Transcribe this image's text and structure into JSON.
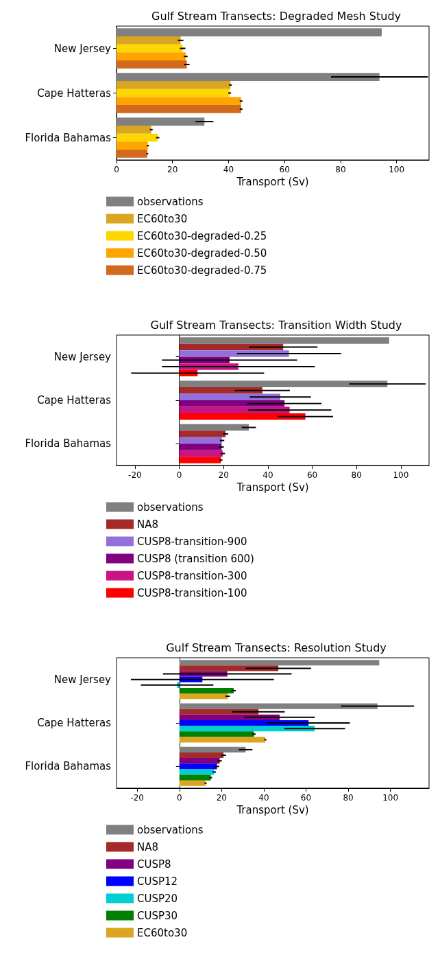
{
  "chart_data": [
    {
      "type": "bar",
      "orientation": "horizontal",
      "title": "Gulf Stream Transects: Degraded Mesh Study",
      "xlabel": "Transport (Sv)",
      "categories": [
        "New Jersey",
        "Cape Hatteras",
        "Florida Bahamas"
      ],
      "xlim": [
        0,
        111.6
      ],
      "xticks": [
        0,
        20,
        40,
        60,
        80,
        100
      ],
      "legend": "bottom",
      "series": [
        {
          "name": "observations",
          "color": "#808080",
          "values": [
            94.7,
            93.9,
            31.4
          ],
          "errors": [
            null,
            17.3,
            3.2
          ]
        },
        {
          "name": "EC60to30",
          "color": "#daa520",
          "values": [
            22.9,
            40.7,
            12.4
          ],
          "errors": [
            1,
            0.5,
            0.5
          ]
        },
        {
          "name": "EC60to30-degraded-0.25",
          "color": "#ffd700",
          "values": [
            23.6,
            40.4,
            14.7
          ],
          "errors": [
            1,
            0.5,
            0.6
          ]
        },
        {
          "name": "EC60to30-degraded-0.50",
          "color": "#ffa500",
          "values": [
            24.7,
            44.5,
            11.2
          ],
          "errors": [
            0.7,
            0.5,
            0.4
          ]
        },
        {
          "name": "EC60to30-degraded-0.75",
          "color": "#d2691e",
          "values": [
            25.1,
            44.5,
            11.0
          ],
          "errors": [
            1,
            0.5,
            0.3
          ]
        }
      ]
    },
    {
      "type": "bar",
      "orientation": "horizontal",
      "title": "Gulf Stream Transects: Transition Width Study",
      "xlabel": "Transport (Sv)",
      "categories": [
        "New Jersey",
        "Cape Hatteras",
        "Florida Bahamas"
      ],
      "xlim": [
        -28.3,
        112.7
      ],
      "xticks": [
        -20,
        0,
        20,
        40,
        60,
        80,
        100
      ],
      "legend": "bottom",
      "series": [
        {
          "name": "observations",
          "color": "#808080",
          "values": [
            94.7,
            93.9,
            31.4
          ],
          "errors": [
            null,
            17.3,
            3.2
          ]
        },
        {
          "name": "NA8",
          "color": "#a52a2a",
          "values": [
            46.9,
            37.5,
            20.9
          ],
          "errors": [
            15.5,
            12.4,
            1.2
          ]
        },
        {
          "name": "CUSP8-transition-900",
          "color": "#9370db",
          "values": [
            49.5,
            45.6,
            19.3
          ],
          "errors": [
            23.5,
            13.8,
            1
          ]
        },
        {
          "name": "CUSP8 (transition 600)",
          "color": "#800080",
          "values": [
            22.7,
            47.5,
            19.1
          ],
          "errors": [
            30.5,
            16.7,
            1
          ]
        },
        {
          "name": "CUSP8-transition-300",
          "color": "#c71585",
          "values": [
            26.7,
            49.8,
            19.6
          ],
          "errors": [
            34.5,
            18.8,
            1
          ]
        },
        {
          "name": "CUSP8-transition-100",
          "color": "#ff0000",
          "values": [
            8.3,
            56.9,
            18.8
          ],
          "errors": [
            30,
            12.5,
            0.7
          ]
        }
      ]
    },
    {
      "type": "bar",
      "orientation": "horizontal",
      "title": "Gulf Stream Transects: Resolution Study",
      "xlabel": "Transport (Sv)",
      "categories": [
        "New Jersey",
        "Cape Hatteras",
        "Florida Bahamas"
      ],
      "xlim": [
        -29.8,
        118.3
      ],
      "xticks": [
        -20,
        0,
        20,
        40,
        60,
        80,
        100
      ],
      "legend": "bottom",
      "series": [
        {
          "name": "observations",
          "color": "#808080",
          "values": [
            94.7,
            93.9,
            31.4
          ],
          "errors": [
            null,
            17.3,
            3.2
          ]
        },
        {
          "name": "NA8",
          "color": "#a52a2a",
          "values": [
            46.9,
            37.5,
            20.9
          ],
          "errors": [
            15.5,
            12.4,
            1.2
          ]
        },
        {
          "name": "CUSP8",
          "color": "#800080",
          "values": [
            22.7,
            47.5,
            19.1
          ],
          "errors": [
            30.5,
            16.7,
            1
          ]
        },
        {
          "name": "CUSP12",
          "color": "#0000ff",
          "values": [
            10.9,
            61.2,
            17.8
          ],
          "errors": [
            33.9,
            19.6,
            1
          ]
        },
        {
          "name": "CUSP20",
          "color": "#00ced1",
          "values": [
            -1.1,
            64.1,
            16.5
          ],
          "errors": [
            17.2,
            14.4,
            0.8
          ]
        },
        {
          "name": "CUSP30",
          "color": "#008000",
          "values": [
            25.7,
            35.3,
            14.9
          ],
          "errors": [
            1,
            0.8,
            0.6
          ]
        },
        {
          "name": "EC60to30",
          "color": "#daa520",
          "values": [
            22.9,
            40.7,
            12.4
          ],
          "errors": [
            1,
            0.5,
            0.5
          ]
        }
      ]
    }
  ]
}
